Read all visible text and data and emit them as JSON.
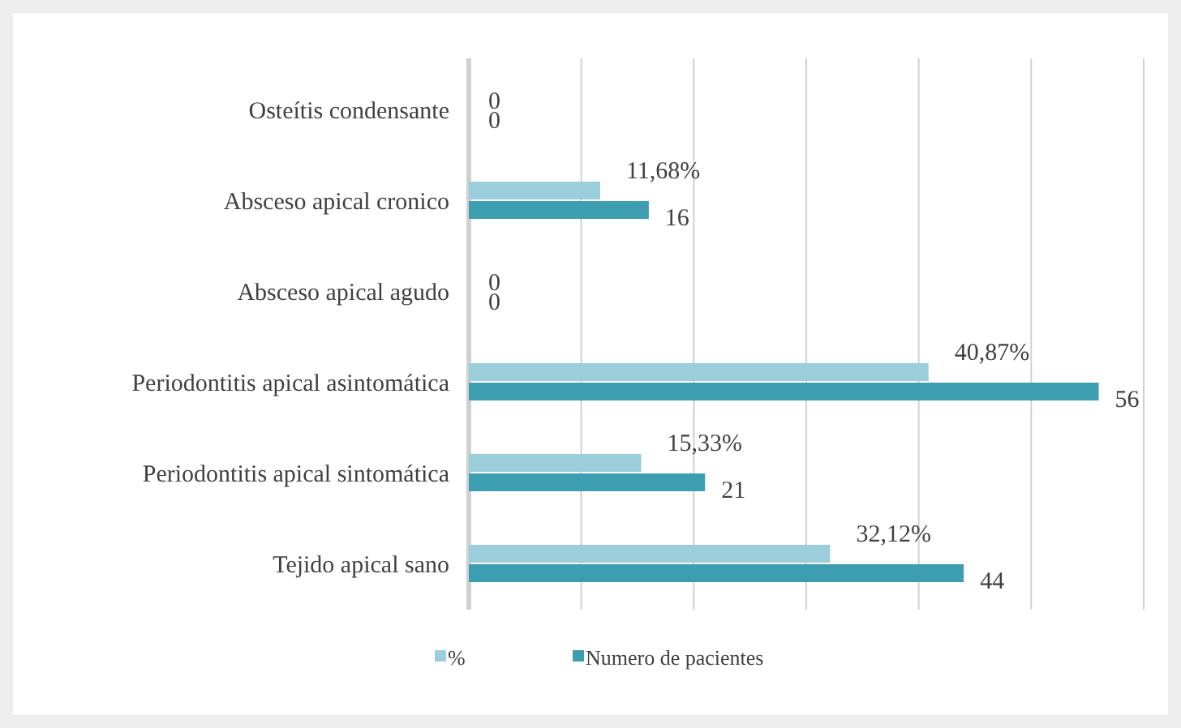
{
  "chart_data": {
    "type": "bar",
    "orientation": "horizontal",
    "categories": [
      "Osteítis condensante",
      "Absceso apical cronico",
      "Absceso apical agudo",
      "Periodontitis apical asintomática",
      "Periodontitis apical sintomática",
      "Tejido apical sano"
    ],
    "series": [
      {
        "name": "%",
        "color": "#9ccddb",
        "values": [
          0,
          11.68,
          0,
          40.87,
          15.33,
          32.12
        ],
        "value_labels": [
          "0",
          "11,68%",
          "0",
          "40,87%",
          "15,33%",
          "32,12%"
        ]
      },
      {
        "name": "Numero de pacientes",
        "color": "#3d9db1",
        "values": [
          0,
          16,
          0,
          56,
          21,
          44
        ],
        "value_labels": [
          "0",
          "16",
          "0",
          "56",
          "21",
          "44"
        ]
      }
    ],
    "xlim": [
      0,
      60
    ],
    "xticks": [
      {
        "value": 0,
        "label": null
      },
      {
        "value": 10,
        "label": null
      },
      {
        "value": 20,
        "label": null
      },
      {
        "value": 30,
        "label": null
      },
      {
        "value": 40,
        "label": null
      },
      {
        "value": 50,
        "label": null
      },
      {
        "value": 60,
        "label": null
      }
    ],
    "grid": "x",
    "tick_labels": "y",
    "legend": "bottom"
  }
}
